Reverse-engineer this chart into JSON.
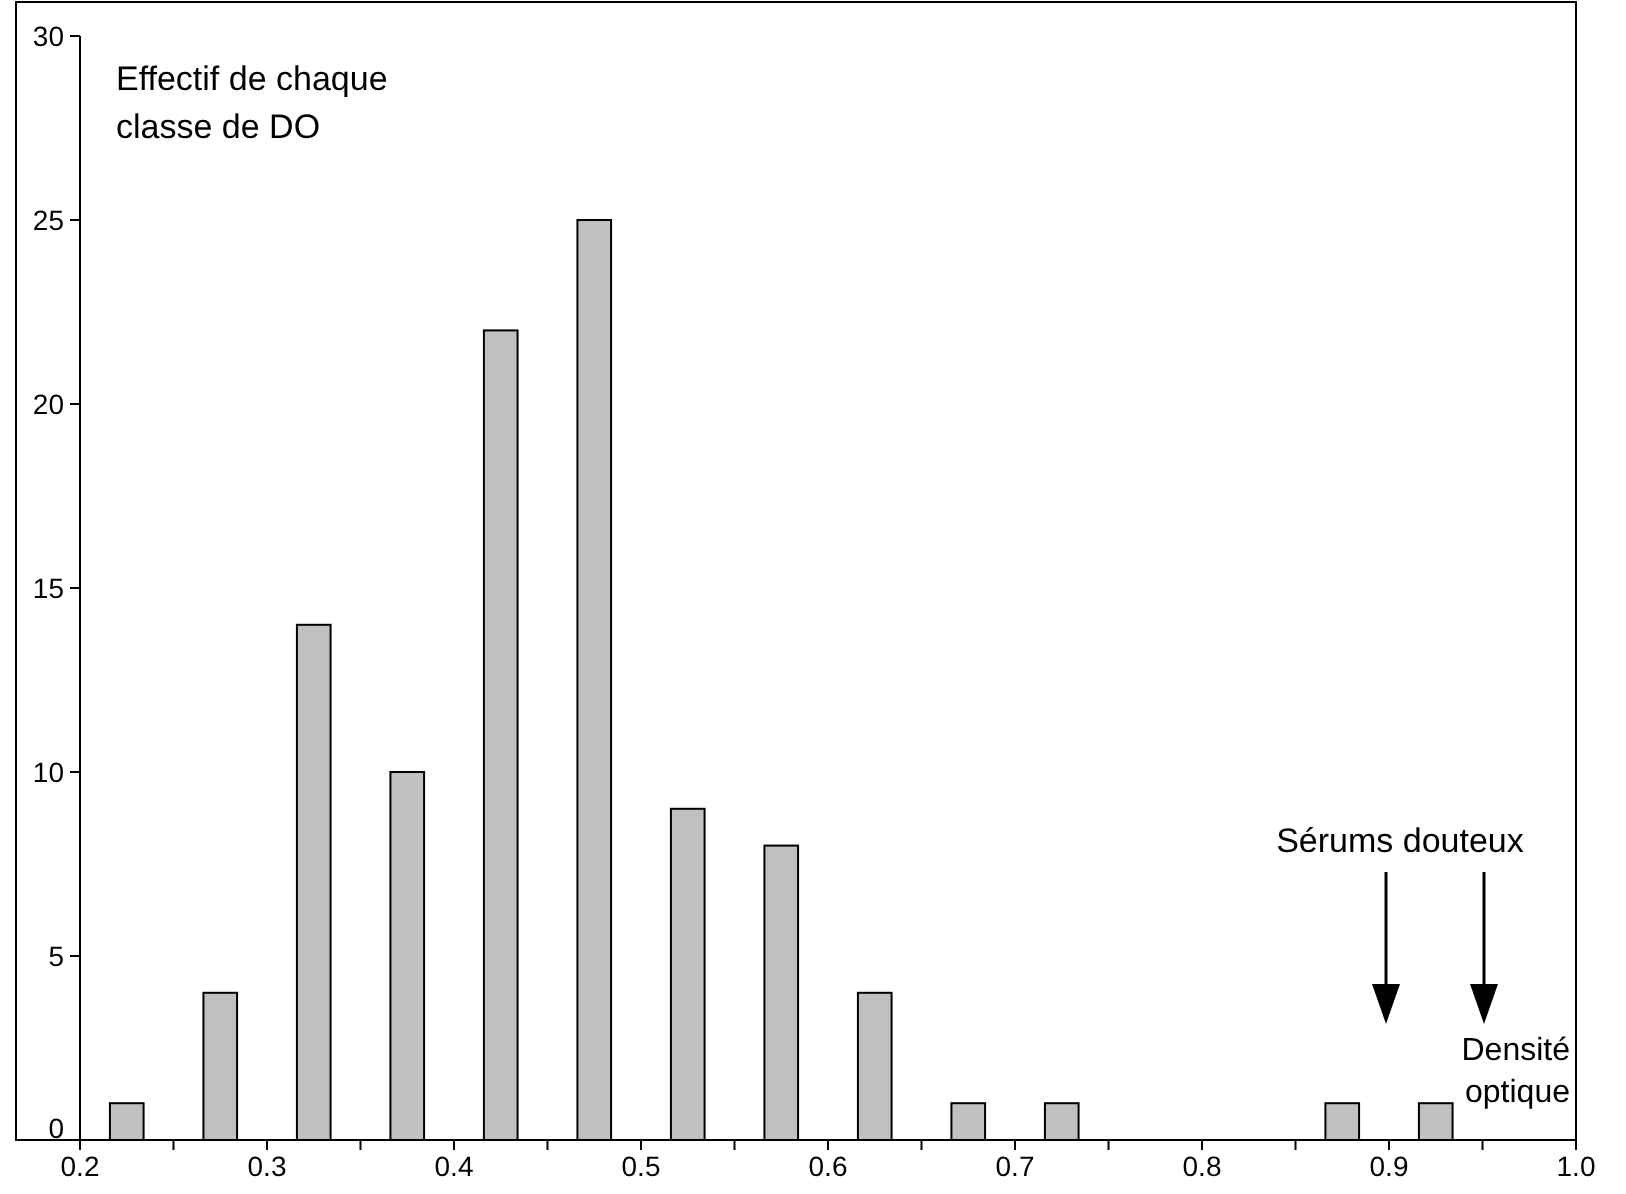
{
  "chart_data": {
    "type": "histogram",
    "bins": [
      0.2,
      0.25,
      0.3,
      0.35,
      0.4,
      0.45,
      0.5,
      0.55,
      0.6,
      0.65,
      0.7,
      0.75,
      0.8,
      0.85,
      0.9,
      0.95,
      1.0
    ],
    "values": [
      1,
      4,
      14,
      10,
      22,
      25,
      9,
      8,
      4,
      1,
      1,
      0,
      0,
      1,
      1,
      0
    ],
    "color": "#c0c0c0",
    "xlim": [
      0.2,
      1.0
    ],
    "xticks": [
      0.2,
      {
        "value": 0.25,
        "label": null
      },
      0.3,
      {
        "value": 0.35,
        "label": null
      },
      0.4,
      {
        "value": 0.45,
        "label": null
      },
      0.5,
      {
        "value": 0.55,
        "label": null
      },
      0.6,
      {
        "value": 0.65,
        "label": null
      },
      0.7,
      {
        "value": 0.75,
        "label": null
      },
      0.8,
      {
        "value": 0.85,
        "label": null
      },
      0.9,
      {
        "value": 0.95,
        "label": null
      },
      {
        "value": 1.0,
        "label": "1.0"
      }
    ],
    "ylim": [
      0,
      30
    ],
    "yticks": [
      0,
      5,
      10,
      15,
      20,
      25,
      30
    ],
    "ylabel": "Effectif de chaque classe de DO",
    "xlabel": "Densité optique",
    "annotations": [
      "Sérums douteux"
    ]
  }
}
